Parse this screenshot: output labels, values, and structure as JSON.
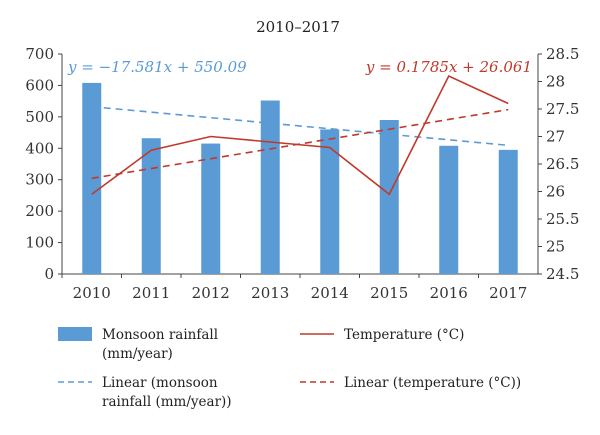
{
  "chart_data": {
    "type": "bar",
    "title": "2010–2017",
    "categories": [
      "2010",
      "2011",
      "2012",
      "2013",
      "2014",
      "2015",
      "2016",
      "2017"
    ],
    "series": [
      {
        "name": "Monsoon rainfall (mm/year)",
        "kind": "bar",
        "axis": "left",
        "color": "#5b9bd5",
        "values": [
          608,
          432,
          415,
          552,
          460,
          490,
          408,
          395
        ]
      },
      {
        "name": "Temperature (°C)",
        "kind": "line",
        "axis": "right",
        "color": "#c0392b",
        "values": [
          25.95,
          26.75,
          27.0,
          26.9,
          26.8,
          25.95,
          28.1,
          27.6
        ]
      }
    ],
    "trendlines": [
      {
        "name": "Linear (monsoon rainfall (mm/year))",
        "axis": "left",
        "color": "#5b9bd5",
        "dash": "dashed",
        "slope": -17.581,
        "intercept": 550.09,
        "equation": "y = −17.581x + 550.09"
      },
      {
        "name": "Linear (temperature (°C))",
        "axis": "right",
        "color": "#c0392b",
        "dash": "dashed",
        "slope": 0.1785,
        "intercept": 26.061,
        "equation": "y = 0.1785x + 26.061"
      }
    ],
    "left_axis": {
      "min": 0,
      "max": 700,
      "step": 100,
      "tick_labels": [
        "0",
        "100",
        "200",
        "300",
        "400",
        "500",
        "600",
        "700"
      ]
    },
    "right_axis": {
      "min": 24.5,
      "max": 28.5,
      "step": 0.5,
      "tick_labels": [
        "24.5",
        "25",
        "25.5",
        "26",
        "26.5",
        "27",
        "27.5",
        "28",
        "28.5"
      ]
    },
    "grid": false,
    "legend_position": "bottom",
    "legend": [
      {
        "label_line1": "Monsoon rainfall",
        "label_line2": "(mm/year)",
        "symbol": "bar",
        "color": "#5b9bd5"
      },
      {
        "label_line1": "Temperature (°C)",
        "label_line2": "",
        "symbol": "line",
        "color": "#c0392b"
      },
      {
        "label_line1": "Linear (monsoon",
        "label_line2": "rainfall (mm/year))",
        "symbol": "dashed",
        "color": "#5b9bd5"
      },
      {
        "label_line1": "Linear (temperature (°C))",
        "label_line2": "",
        "symbol": "dashed",
        "color": "#c0392b"
      }
    ]
  }
}
